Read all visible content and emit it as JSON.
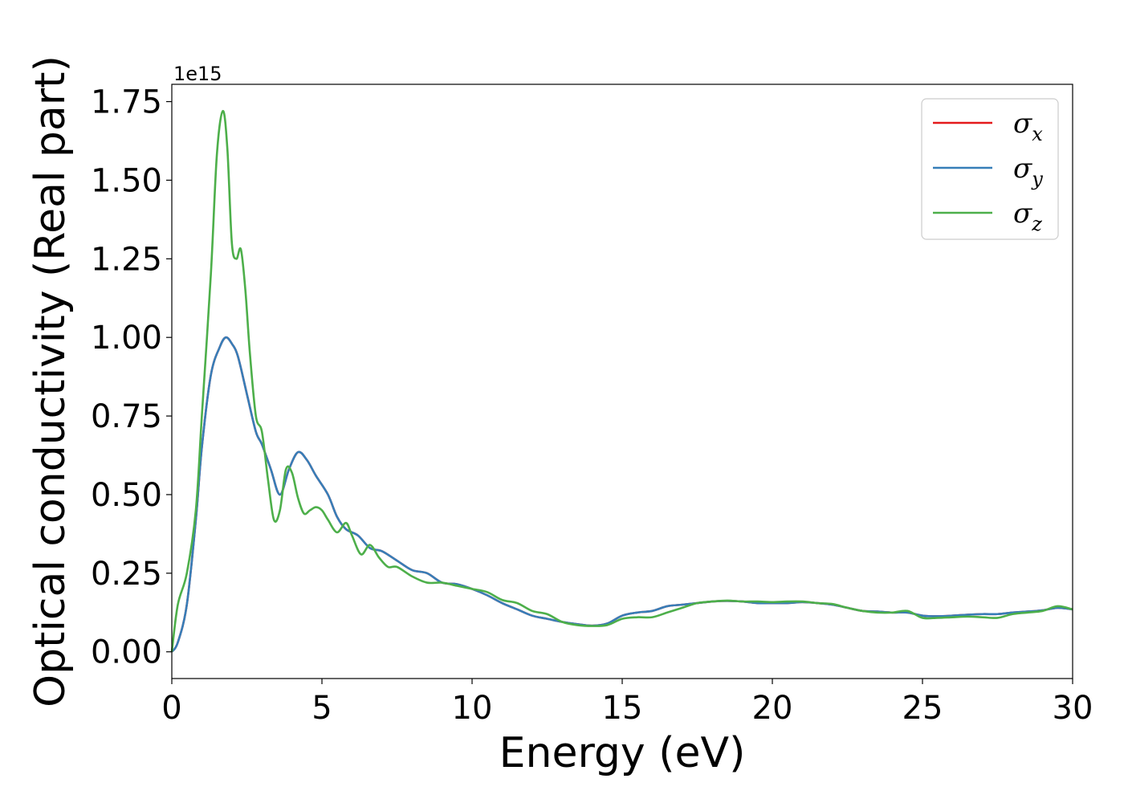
{
  "chart_data": {
    "type": "line",
    "xlabel": "Energy (eV)",
    "ylabel": "Optical conductivity (Real part)",
    "y_offset_text": "1e15",
    "xlim": [
      0,
      30
    ],
    "ylim": [
      -0.085,
      1.805
    ],
    "y_scale_factor": 1000000000000000.0,
    "x_ticks": [
      0,
      5,
      10,
      15,
      20,
      25,
      30
    ],
    "x_tick_labels": [
      "0",
      "5",
      "10",
      "15",
      "20",
      "25",
      "30"
    ],
    "y_ticks": [
      0.0,
      0.25,
      0.5,
      0.75,
      1.0,
      1.25,
      1.5,
      1.75
    ],
    "y_tick_labels": [
      "0.00",
      "0.25",
      "0.50",
      "0.75",
      "1.00",
      "1.25",
      "1.50",
      "1.75"
    ],
    "grid": false,
    "legend_position": "top-right",
    "series": [
      {
        "name": "σx",
        "legend_symbol": "σ",
        "legend_sub": "x",
        "color": "#e41a1c",
        "x": [
          0,
          0.2,
          0.5,
          0.8,
          1.0,
          1.3,
          1.6,
          1.8,
          2.0,
          2.2,
          2.5,
          2.8,
          3.0,
          3.3,
          3.6,
          3.9,
          4.2,
          4.5,
          4.8,
          5.2,
          5.5,
          5.8,
          6.2,
          6.6,
          7.0,
          7.5,
          8.0,
          8.5,
          9.0,
          9.5,
          10.0,
          10.5,
          11.0,
          11.5,
          12.0,
          12.5,
          13.0,
          13.5,
          14.0,
          14.5,
          15.0,
          15.5,
          16.0,
          16.5,
          17.0,
          17.5,
          18.0,
          18.5,
          19.0,
          19.5,
          20.0,
          20.5,
          21.0,
          21.5,
          22.0,
          22.5,
          23.0,
          23.5,
          24.0,
          24.5,
          25.0,
          25.5,
          26.0,
          26.5,
          27.0,
          27.5,
          28.0,
          28.5,
          29.0,
          29.5,
          30.0
        ],
        "y": [
          0.0,
          0.03,
          0.15,
          0.42,
          0.65,
          0.88,
          0.97,
          1.0,
          0.98,
          0.94,
          0.82,
          0.7,
          0.66,
          0.58,
          0.5,
          0.58,
          0.635,
          0.61,
          0.56,
          0.5,
          0.43,
          0.39,
          0.37,
          0.33,
          0.32,
          0.29,
          0.26,
          0.25,
          0.22,
          0.215,
          0.2,
          0.18,
          0.155,
          0.135,
          0.115,
          0.105,
          0.095,
          0.088,
          0.083,
          0.09,
          0.115,
          0.125,
          0.13,
          0.145,
          0.15,
          0.155,
          0.16,
          0.162,
          0.16,
          0.155,
          0.155,
          0.155,
          0.158,
          0.155,
          0.15,
          0.14,
          0.13,
          0.128,
          0.125,
          0.125,
          0.115,
          0.113,
          0.115,
          0.118,
          0.12,
          0.12,
          0.125,
          0.128,
          0.132,
          0.14,
          0.135
        ]
      },
      {
        "name": "σy",
        "legend_symbol": "σ",
        "legend_sub": "y",
        "color": "#377eb8",
        "x": [
          0,
          0.2,
          0.5,
          0.8,
          1.0,
          1.3,
          1.6,
          1.8,
          2.0,
          2.2,
          2.5,
          2.8,
          3.0,
          3.3,
          3.6,
          3.9,
          4.2,
          4.5,
          4.8,
          5.2,
          5.5,
          5.8,
          6.2,
          6.6,
          7.0,
          7.5,
          8.0,
          8.5,
          9.0,
          9.5,
          10.0,
          10.5,
          11.0,
          11.5,
          12.0,
          12.5,
          13.0,
          13.5,
          14.0,
          14.5,
          15.0,
          15.5,
          16.0,
          16.5,
          17.0,
          17.5,
          18.0,
          18.5,
          19.0,
          19.5,
          20.0,
          20.5,
          21.0,
          21.5,
          22.0,
          22.5,
          23.0,
          23.5,
          24.0,
          24.5,
          25.0,
          25.5,
          26.0,
          26.5,
          27.0,
          27.5,
          28.0,
          28.5,
          29.0,
          29.5,
          30.0
        ],
        "y": [
          0.0,
          0.03,
          0.15,
          0.42,
          0.65,
          0.88,
          0.97,
          1.0,
          0.98,
          0.94,
          0.82,
          0.7,
          0.66,
          0.58,
          0.5,
          0.58,
          0.635,
          0.61,
          0.56,
          0.5,
          0.43,
          0.39,
          0.37,
          0.33,
          0.32,
          0.29,
          0.26,
          0.25,
          0.22,
          0.215,
          0.2,
          0.18,
          0.155,
          0.135,
          0.115,
          0.105,
          0.095,
          0.088,
          0.083,
          0.09,
          0.115,
          0.125,
          0.13,
          0.145,
          0.15,
          0.155,
          0.16,
          0.162,
          0.16,
          0.155,
          0.155,
          0.155,
          0.158,
          0.155,
          0.15,
          0.14,
          0.13,
          0.128,
          0.125,
          0.125,
          0.115,
          0.113,
          0.115,
          0.118,
          0.12,
          0.12,
          0.125,
          0.128,
          0.132,
          0.14,
          0.135
        ]
      },
      {
        "name": "σz",
        "legend_symbol": "σ",
        "legend_sub": "z",
        "color": "#4daf4a",
        "x": [
          0,
          0.2,
          0.5,
          0.8,
          1.0,
          1.3,
          1.5,
          1.7,
          1.85,
          2.0,
          2.15,
          2.3,
          2.45,
          2.6,
          2.8,
          3.0,
          3.2,
          3.4,
          3.6,
          3.8,
          4.0,
          4.2,
          4.4,
          4.6,
          4.8,
          5.0,
          5.2,
          5.5,
          5.8,
          6.0,
          6.3,
          6.6,
          6.9,
          7.2,
          7.5,
          8.0,
          8.5,
          9.0,
          9.5,
          10.0,
          10.5,
          11.0,
          11.5,
          12.0,
          12.5,
          13.0,
          13.5,
          14.0,
          14.5,
          15.0,
          15.5,
          16.0,
          16.5,
          17.0,
          17.5,
          18.0,
          18.5,
          19.0,
          19.5,
          20.0,
          20.5,
          21.0,
          21.5,
          22.0,
          22.5,
          23.0,
          23.5,
          24.0,
          24.5,
          25.0,
          25.5,
          26.0,
          26.5,
          27.0,
          27.5,
          28.0,
          28.5,
          29.0,
          29.5,
          30.0
        ],
        "y": [
          0.0,
          0.15,
          0.25,
          0.45,
          0.75,
          1.2,
          1.58,
          1.72,
          1.6,
          1.3,
          1.25,
          1.28,
          1.15,
          0.95,
          0.75,
          0.7,
          0.55,
          0.42,
          0.45,
          0.58,
          0.57,
          0.49,
          0.44,
          0.45,
          0.46,
          0.45,
          0.42,
          0.38,
          0.41,
          0.37,
          0.31,
          0.34,
          0.3,
          0.27,
          0.27,
          0.24,
          0.22,
          0.22,
          0.21,
          0.2,
          0.19,
          0.165,
          0.155,
          0.13,
          0.12,
          0.095,
          0.085,
          0.082,
          0.085,
          0.105,
          0.11,
          0.11,
          0.125,
          0.14,
          0.155,
          0.16,
          0.163,
          0.16,
          0.16,
          0.158,
          0.16,
          0.16,
          0.155,
          0.152,
          0.14,
          0.13,
          0.125,
          0.125,
          0.13,
          0.108,
          0.108,
          0.11,
          0.112,
          0.11,
          0.108,
          0.12,
          0.125,
          0.13,
          0.145,
          0.135
        ]
      }
    ]
  }
}
